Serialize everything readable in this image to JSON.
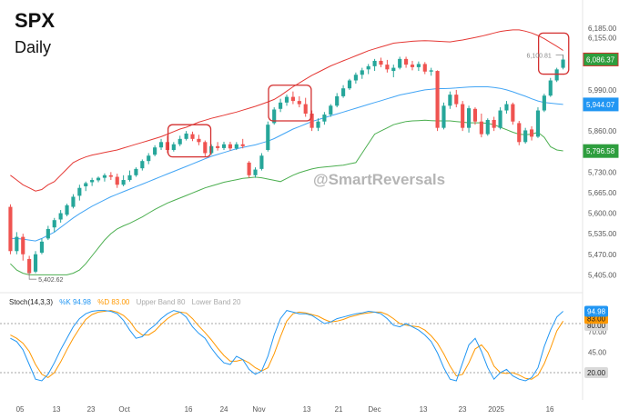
{
  "header": {
    "symbol": "SPX",
    "interval": "Daily"
  },
  "watermark": "@SmartReversals",
  "colors": {
    "bull": "#26a69a",
    "bear": "#ef5350",
    "upper_band": "#e53935",
    "mid_band": "#42a5f5",
    "lower_band": "#4caf50",
    "k_line": "#2196f3",
    "d_line": "#ff9800",
    "highlight_box": "#d32f2f"
  },
  "price_axis": {
    "ticks": [
      "6,185.00",
      "6,155.00",
      "5,990.00",
      "5,860.00",
      "5,795.00",
      "5,730.00",
      "5,665.00",
      "5,600.00",
      "5,535.00",
      "5,470.00",
      "5,405.00"
    ],
    "range": [
      5360,
      6240
    ]
  },
  "price_labels": {
    "last": "6,086.37",
    "mid_band": "5,944.07",
    "lower_band": "5,796.58",
    "marker_high": "6,100.81",
    "marker_low": "5,402.62"
  },
  "stoch": {
    "name": "Stoch(14,3,3)",
    "k_label": "%K 94.98",
    "d_label": "%D 83.00",
    "upper_band_label": "Upper Band 80",
    "lower_band_label": "Lower Band 20",
    "k_value": "94.98",
    "d_value": "83.00",
    "upper_value": "80.00",
    "lower_value": "20.00",
    "axis_ticks": [
      "70.00",
      "45.00"
    ],
    "range": [
      0,
      100
    ]
  },
  "time_axis": [
    "05",
    "13",
    "23",
    "Oct",
    "16",
    "24",
    "Nov",
    "13",
    "21",
    "Dec",
    "13",
    "23",
    "2025",
    "16"
  ],
  "chart_data": {
    "type": "candlestick",
    "title": "SPX",
    "subtitle": "Daily",
    "candles": [
      [
        5620,
        5628,
        5470,
        5480
      ],
      [
        5480,
        5540,
        5470,
        5525
      ],
      [
        5525,
        5535,
        5450,
        5470
      ],
      [
        5455,
        5465,
        5403,
        5410
      ],
      [
        5415,
        5480,
        5410,
        5470
      ],
      [
        5475,
        5520,
        5470,
        5510
      ],
      [
        5520,
        5560,
        5515,
        5550
      ],
      [
        5555,
        5585,
        5540,
        5578
      ],
      [
        5580,
        5610,
        5570,
        5600
      ],
      [
        5595,
        5630,
        5590,
        5625
      ],
      [
        5620,
        5660,
        5615,
        5652
      ],
      [
        5655,
        5690,
        5640,
        5680
      ],
      [
        5685,
        5700,
        5670,
        5695
      ],
      [
        5698,
        5712,
        5686,
        5705
      ],
      [
        5704,
        5716,
        5698,
        5712
      ],
      [
        5712,
        5726,
        5700,
        5720
      ],
      [
        5720,
        5730,
        5705,
        5715
      ],
      [
        5715,
        5725,
        5680,
        5690
      ],
      [
        5690,
        5720,
        5685,
        5705
      ],
      [
        5705,
        5735,
        5700,
        5720
      ],
      [
        5720,
        5745,
        5715,
        5740
      ],
      [
        5742,
        5770,
        5735,
        5765
      ],
      [
        5765,
        5790,
        5755,
        5782
      ],
      [
        5785,
        5815,
        5780,
        5808
      ],
      [
        5808,
        5835,
        5800,
        5825
      ],
      [
        5825,
        5845,
        5790,
        5800
      ],
      [
        5800,
        5825,
        5795,
        5818
      ],
      [
        5818,
        5845,
        5812,
        5835
      ],
      [
        5835,
        5860,
        5830,
        5852
      ],
      [
        5850,
        5858,
        5828,
        5835
      ],
      [
        5835,
        5848,
        5815,
        5825
      ],
      [
        5825,
        5830,
        5780,
        5790
      ],
      [
        5790,
        5818,
        5785,
        5812
      ],
      [
        5812,
        5825,
        5798,
        5806
      ],
      [
        5806,
        5826,
        5800,
        5818
      ],
      [
        5818,
        5826,
        5798,
        5805
      ],
      [
        5805,
        5825,
        5800,
        5818
      ],
      [
        5818,
        5835,
        5805,
        5812
      ],
      [
        5760,
        5765,
        5712,
        5720
      ],
      [
        5720,
        5745,
        5712,
        5738
      ],
      [
        5740,
        5790,
        5735,
        5782
      ],
      [
        5800,
        5890,
        5795,
        5880
      ],
      [
        5885,
        5935,
        5880,
        5928
      ],
      [
        5930,
        5962,
        5920,
        5950
      ],
      [
        5950,
        5975,
        5940,
        5968
      ],
      [
        5968,
        5985,
        5945,
        5955
      ],
      [
        5955,
        5970,
        5935,
        5945
      ],
      [
        5945,
        5965,
        5905,
        5915
      ],
      [
        5915,
        5925,
        5860,
        5870
      ],
      [
        5870,
        5900,
        5860,
        5890
      ],
      [
        5890,
        5920,
        5880,
        5912
      ],
      [
        5912,
        5945,
        5905,
        5940
      ],
      [
        5940,
        5980,
        5935,
        5970
      ],
      [
        5970,
        6005,
        5965,
        5995
      ],
      [
        5995,
        6025,
        5990,
        6020
      ],
      [
        6020,
        6045,
        6010,
        6038
      ],
      [
        6038,
        6060,
        6025,
        6052
      ],
      [
        6055,
        6072,
        6040,
        6065
      ],
      [
        6065,
        6088,
        6050,
        6082
      ],
      [
        6082,
        6092,
        6062,
        6070
      ],
      [
        6070,
        6085,
        6045,
        6055
      ],
      [
        6050,
        6070,
        6030,
        6060
      ],
      [
        6060,
        6095,
        6055,
        6088
      ],
      [
        6088,
        6095,
        6060,
        6070
      ],
      [
        6070,
        6082,
        6052,
        6062
      ],
      [
        6062,
        6080,
        6050,
        6072
      ],
      [
        6072,
        6078,
        6040,
        6048
      ],
      [
        6048,
        6060,
        6035,
        6052
      ],
      [
        6050,
        6052,
        5860,
        5870
      ],
      [
        5870,
        5950,
        5865,
        5940
      ],
      [
        5940,
        5985,
        5930,
        5975
      ],
      [
        5975,
        5990,
        5935,
        5945
      ],
      [
        5945,
        5955,
        5860,
        5870
      ],
      [
        5870,
        5940,
        5855,
        5932
      ],
      [
        5930,
        5935,
        5880,
        5890
      ],
      [
        5890,
        5915,
        5840,
        5850
      ],
      [
        5850,
        5900,
        5845,
        5895
      ],
      [
        5895,
        5905,
        5860,
        5870
      ],
      [
        5870,
        5935,
        5865,
        5925
      ],
      [
        5925,
        5955,
        5915,
        5945
      ],
      [
        5945,
        5950,
        5880,
        5890
      ],
      [
        5885,
        5892,
        5815,
        5825
      ],
      [
        5825,
        5870,
        5820,
        5862
      ],
      [
        5865,
        5875,
        5830,
        5842
      ],
      [
        5842,
        5935,
        5838,
        5925
      ],
      [
        5925,
        5978,
        5920,
        5972
      ],
      [
        5972,
        6028,
        5968,
        6020
      ],
      [
        6020,
        6060,
        6015,
        6055
      ],
      [
        6060,
        6100,
        6055,
        6086
      ]
    ],
    "upper_band": [
      5720,
      5705,
      5690,
      5680,
      5670,
      5675,
      5690,
      5700,
      5720,
      5740,
      5760,
      5770,
      5778,
      5784,
      5788,
      5792,
      5796,
      5800,
      5806,
      5812,
      5818,
      5824,
      5830,
      5836,
      5842,
      5850,
      5858,
      5866,
      5872,
      5880,
      5888,
      5894,
      5900,
      5905,
      5910,
      5915,
      5920,
      5926,
      5932,
      5938,
      5945,
      5952,
      5960,
      5972,
      5986,
      6000,
      6012,
      6024,
      6036,
      6046,
      6056,
      6066,
      6074,
      6082,
      6090,
      6098,
      6106,
      6114,
      6120,
      6126,
      6132,
      6138,
      6140,
      6142,
      6144,
      6145,
      6146,
      6145,
      6144,
      6143,
      6142,
      6145,
      6148,
      6152,
      6156,
      6160,
      6165,
      6170,
      6175,
      6178,
      6180,
      6180,
      6176,
      6170,
      6162,
      6152,
      6140,
      6128,
      6115
    ],
    "mid_band": [
      5520,
      5520,
      5518,
      5515,
      5512,
      5520,
      5530,
      5540,
      5555,
      5570,
      5585,
      5598,
      5610,
      5622,
      5632,
      5642,
      5652,
      5660,
      5668,
      5676,
      5684,
      5692,
      5700,
      5708,
      5716,
      5724,
      5732,
      5740,
      5748,
      5756,
      5764,
      5772,
      5780,
      5786,
      5792,
      5798,
      5804,
      5808,
      5812,
      5816,
      5822,
      5828,
      5836,
      5846,
      5856,
      5866,
      5874,
      5882,
      5890,
      5896,
      5902,
      5908,
      5914,
      5920,
      5926,
      5932,
      5938,
      5944,
      5950,
      5956,
      5962,
      5968,
      5974,
      5978,
      5982,
      5986,
      5990,
      5992,
      5994,
      5994,
      5995,
      5996,
      5998,
      5999,
      6000,
      6000,
      6000,
      5998,
      5995,
      5990,
      5984,
      5977,
      5970,
      5962,
      5955,
      5950,
      5948,
      5946,
      5944
    ],
    "lower_band": [
      5440,
      5420,
      5410,
      5405,
      5405,
      5405,
      5405,
      5405,
      5405,
      5405,
      5410,
      5420,
      5440,
      5465,
      5490,
      5515,
      5535,
      5550,
      5560,
      5568,
      5578,
      5588,
      5600,
      5612,
      5622,
      5632,
      5640,
      5648,
      5656,
      5664,
      5672,
      5680,
      5686,
      5692,
      5698,
      5702,
      5706,
      5710,
      5712,
      5714,
      5712,
      5708,
      5704,
      5700,
      5710,
      5720,
      5728,
      5734,
      5740,
      5744,
      5746,
      5748,
      5750,
      5752,
      5756,
      5760,
      5790,
      5820,
      5850,
      5860,
      5870,
      5880,
      5885,
      5890,
      5892,
      5893,
      5894,
      5893,
      5892,
      5892,
      5892,
      5890,
      5888,
      5886,
      5886,
      5886,
      5884,
      5880,
      5872,
      5864,
      5856,
      5850,
      5848,
      5850,
      5856,
      5840,
      5810,
      5800,
      5797
    ],
    "stoch_k": [
      62,
      58,
      48,
      30,
      12,
      10,
      18,
      32,
      48,
      62,
      76,
      86,
      92,
      95,
      96,
      96,
      95,
      92,
      84,
      72,
      62,
      64,
      72,
      78,
      86,
      92,
      96,
      94,
      88,
      76,
      68,
      62,
      50,
      40,
      32,
      30,
      40,
      36,
      24,
      18,
      22,
      40,
      66,
      86,
      96,
      94,
      92,
      92,
      90,
      85,
      80,
      82,
      86,
      88,
      90,
      92,
      93,
      95,
      94,
      92,
      86,
      78,
      76,
      80,
      76,
      72,
      66,
      58,
      44,
      26,
      12,
      10,
      32,
      54,
      62,
      46,
      26,
      12,
      20,
      24,
      16,
      12,
      10,
      14,
      26,
      52,
      72,
      88,
      95
    ],
    "stoch_d": [
      66,
      62,
      56,
      46,
      30,
      18,
      14,
      20,
      33,
      48,
      62,
      74,
      85,
      91,
      94,
      95,
      96,
      94,
      90,
      83,
      72,
      66,
      66,
      71,
      79,
      86,
      91,
      94,
      93,
      86,
      77,
      69,
      60,
      50,
      41,
      34,
      34,
      36,
      32,
      26,
      22,
      26,
      43,
      64,
      83,
      92,
      94,
      93,
      91,
      89,
      85,
      82,
      83,
      85,
      88,
      90,
      92,
      93,
      94,
      94,
      91,
      86,
      80,
      78,
      77,
      76,
      72,
      65,
      56,
      43,
      28,
      16,
      18,
      32,
      49,
      54,
      45,
      28,
      20,
      19,
      20,
      17,
      13,
      12,
      17,
      31,
      50,
      71,
      83
    ]
  }
}
